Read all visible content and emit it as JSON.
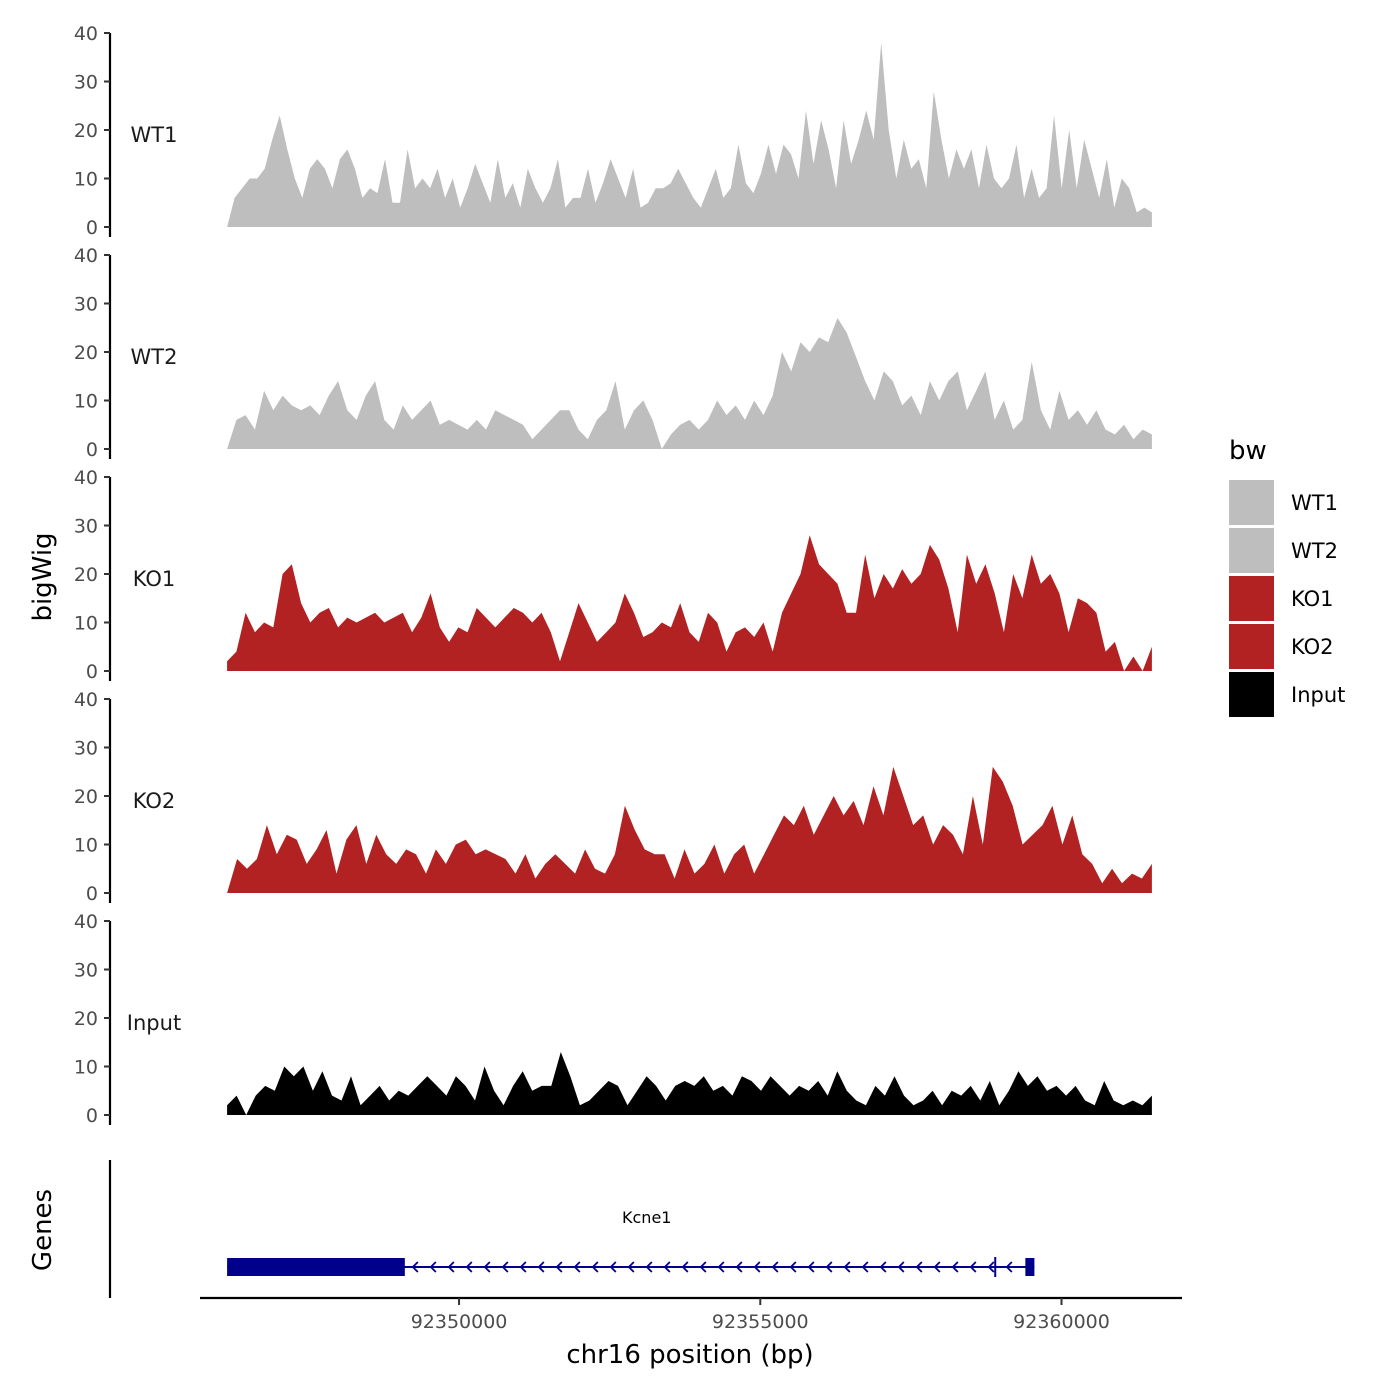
{
  "chart_data": {
    "type": "area",
    "x_axis": {
      "label": "chr16 position (bp)",
      "range": [
        92345700,
        92362000
      ],
      "data_start": 92346150,
      "data_end": 92361500,
      "ticks": [
        92350000,
        92355000,
        92360000
      ],
      "tick_labels": [
        "92350000",
        "92355000",
        "92360000"
      ]
    },
    "y_axis": {
      "label": "bigWig",
      "range": [
        0,
        40
      ],
      "ticks": [
        0,
        10,
        20,
        30,
        40
      ],
      "tick_labels": [
        "0",
        "10",
        "20",
        "30",
        "40"
      ]
    },
    "tracks": [
      {
        "name": "WT1",
        "color": "#BEBEBE",
        "values": [
          0,
          6,
          8,
          10,
          10,
          12,
          18,
          23,
          16,
          10,
          6,
          12,
          14,
          12,
          8,
          14,
          16,
          12,
          6,
          8,
          7,
          14,
          5,
          5,
          16,
          8,
          10,
          8,
          12,
          6,
          10,
          4,
          8,
          13,
          9,
          5,
          14,
          6,
          9,
          4,
          12,
          8,
          5,
          8,
          14,
          4,
          6,
          6,
          12,
          5,
          9,
          14,
          10,
          6,
          12,
          4,
          5,
          8,
          8,
          9,
          12,
          9,
          6,
          4,
          8,
          12,
          6,
          8,
          17,
          9,
          7,
          11,
          17,
          11,
          17,
          15,
          10,
          24,
          13,
          22,
          16,
          8,
          22,
          13,
          18,
          24,
          18,
          38,
          20,
          10,
          18,
          12,
          14,
          8,
          28,
          18,
          10,
          16,
          12,
          16,
          8,
          17,
          10,
          8,
          10,
          17,
          6,
          12,
          6,
          8,
          23,
          8,
          20,
          8,
          18,
          12,
          6,
          14,
          4,
          10,
          8,
          3,
          4,
          3
        ]
      },
      {
        "name": "WT2",
        "color": "#BEBEBE",
        "values": [
          0,
          6,
          7,
          4,
          12,
          8,
          11,
          9,
          8,
          9,
          7,
          11,
          14,
          8,
          6,
          11,
          14,
          6,
          4,
          9,
          6,
          8,
          10,
          5,
          6,
          5,
          4,
          6,
          4,
          8,
          7,
          6,
          5,
          2,
          4,
          6,
          8,
          8,
          4,
          2,
          6,
          8,
          14,
          4,
          8,
          10,
          6,
          0,
          3,
          5,
          6,
          4,
          6,
          10,
          7,
          9,
          6,
          10,
          7,
          11,
          20,
          16,
          22,
          20,
          23,
          22,
          27,
          24,
          19,
          14,
          10,
          16,
          14,
          9,
          11,
          7,
          14,
          10,
          14,
          16,
          8,
          12,
          16,
          6,
          10,
          4,
          6,
          18,
          8,
          4,
          12,
          6,
          8,
          5,
          8,
          4,
          3,
          5,
          2,
          4,
          3
        ]
      },
      {
        "name": "KO1",
        "color": "#B22222",
        "values": [
          2,
          4,
          12,
          8,
          10,
          9,
          20,
          22,
          14,
          10,
          12,
          13,
          9,
          11,
          10,
          11,
          12,
          10,
          11,
          12,
          8,
          11,
          16,
          9,
          6,
          9,
          8,
          13,
          11,
          9,
          11,
          13,
          12,
          10,
          12,
          8,
          2,
          8,
          14,
          10,
          6,
          8,
          10,
          16,
          12,
          7,
          8,
          10,
          9,
          14,
          8,
          6,
          12,
          10,
          4,
          8,
          9,
          7,
          10,
          4,
          12,
          16,
          20,
          28,
          22,
          20,
          18,
          12,
          12,
          24,
          15,
          20,
          17,
          21,
          18,
          20,
          26,
          23,
          17,
          8,
          24,
          18,
          22,
          16,
          8,
          20,
          15,
          24,
          18,
          20,
          16,
          8,
          15,
          14,
          12,
          4,
          6,
          0,
          3,
          0,
          5
        ]
      },
      {
        "name": "KO2",
        "color": "#B22222",
        "values": [
          0,
          7,
          5,
          7,
          14,
          8,
          12,
          11,
          6,
          9,
          13,
          4,
          11,
          14,
          6,
          12,
          8,
          6,
          9,
          8,
          4,
          9,
          6,
          10,
          11,
          8,
          9,
          8,
          7,
          4,
          8,
          3,
          6,
          8,
          6,
          4,
          9,
          5,
          4,
          8,
          18,
          13,
          9,
          8,
          8,
          3,
          9,
          4,
          6,
          10,
          4,
          8,
          10,
          4,
          8,
          12,
          16,
          14,
          18,
          12,
          16,
          20,
          16,
          19,
          14,
          22,
          16,
          26,
          20,
          14,
          16,
          10,
          14,
          12,
          8,
          20,
          10,
          26,
          23,
          18,
          10,
          12,
          14,
          18,
          10,
          16,
          8,
          6,
          2,
          5,
          2,
          4,
          3,
          6
        ]
      },
      {
        "name": "Input",
        "color": "#000000",
        "values": [
          2,
          4,
          0,
          4,
          6,
          5,
          10,
          8,
          10,
          5,
          9,
          4,
          3,
          8,
          2,
          4,
          6,
          3,
          5,
          4,
          6,
          8,
          6,
          4,
          8,
          6,
          3,
          10,
          5,
          2,
          6,
          9,
          5,
          6,
          6,
          13,
          8,
          2,
          3,
          5,
          7,
          6,
          2,
          5,
          8,
          6,
          3,
          6,
          7,
          6,
          8,
          5,
          6,
          4,
          8,
          7,
          5,
          8,
          6,
          4,
          6,
          5,
          7,
          4,
          9,
          5,
          3,
          2,
          6,
          4,
          8,
          4,
          2,
          3,
          5,
          2,
          5,
          4,
          6,
          3,
          7,
          2,
          5,
          9,
          6,
          8,
          5,
          6,
          4,
          6,
          3,
          2,
          7,
          3,
          2,
          3,
          2,
          4
        ]
      }
    ],
    "legend": {
      "title": "bw",
      "position": "right",
      "entries": [
        {
          "label": "WT1",
          "color": "#BEBEBE"
        },
        {
          "label": "WT2",
          "color": "#BEBEBE"
        },
        {
          "label": "KO1",
          "color": "#B22222"
        },
        {
          "label": "KO2",
          "color": "#B22222"
        },
        {
          "label": "Input",
          "color": "#000000"
        }
      ]
    },
    "genes_track": {
      "label": "Genes",
      "gene": {
        "name": "Kcne1",
        "start": 92346150,
        "end": 92359550,
        "strand": "-",
        "color": "#00008B",
        "thick_blocks": [
          [
            92346150,
            92349100
          ],
          [
            92359400,
            92359550
          ]
        ],
        "intron_break": 92358900
      }
    }
  }
}
